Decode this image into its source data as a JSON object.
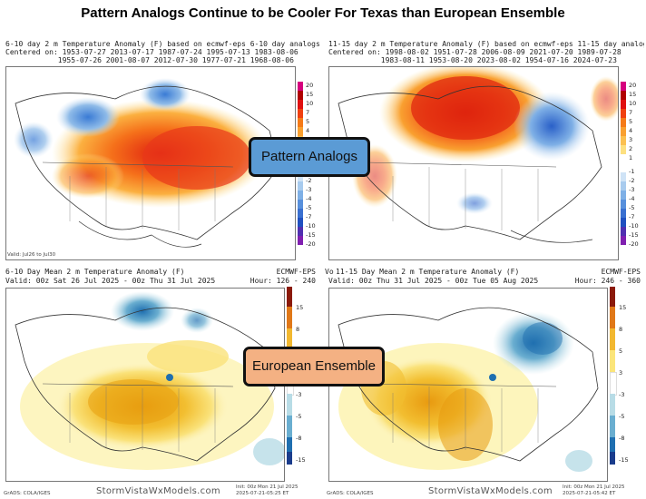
{
  "title": "Pattern Analogs Continue to be Cooler For Texas than European Ensemble",
  "callouts": {
    "analogs": "Pattern Analogs",
    "ensemble": "European Ensemble"
  },
  "colors": {
    "analogs_callout_bg": "#5b9bd5",
    "ensemble_callout_bg": "#f4b183"
  },
  "panels": {
    "tl": {
      "header_line1": "6-10 day 2 m Temperature Anomaly (F) based on ecmwf-eps 6-10 day analogs",
      "header_line2": "Centered on: 1953-07-27 2013-07-17 1987-07-24 1995-07-13 1983-08-06",
      "header_line3": "            1955-07-26 2001-08-07 2012-07-30 1977-07-21 1968-08-06",
      "valid": "Valid: Jul26 to Jul30",
      "ticks": [
        "20",
        "15",
        "10",
        "7",
        "5",
        "4",
        "3",
        "2",
        "1",
        "-1",
        "-2",
        "-3",
        "-4",
        "-5",
        "-7",
        "-10",
        "-15",
        "-20"
      ]
    },
    "tr": {
      "header_line1": "11-15 day 2 m Temperature Anomaly (F) based on ecmwf-eps 11-15 day analogs",
      "header_line2": "Centered on: 1998-08-02 1951-07-28 2006-08-09 2021-07-20 1989-07-28",
      "header_line3": "            1983-08-11 1953-08-20 2023-08-02 1954-07-16 2024-07-23",
      "ticks": [
        "20",
        "15",
        "10",
        "7",
        "5",
        "4",
        "3",
        "2",
        "1",
        "-1",
        "-2",
        "-3",
        "-4",
        "-5",
        "-7",
        "-10",
        "-15",
        "-20"
      ]
    },
    "bl": {
      "header_line1": "6-10 Day Mean 2 m Temperature Anomaly (F)",
      "header_line2": "Valid: 00z Sat 26 Jul 2025 - 00z Thu 31 Jul 2025",
      "model": "ECMWF-EPS",
      "hour": "Hour: 126 - 240",
      "init": "Init: 00z Mon 21 Jul 2025",
      "stamp": "2025-07-21-05:25 ET",
      "grads": "GrADS: COLA/IGES",
      "brand": "StormVistaWxModels.com",
      "ticks": [
        "15",
        "8",
        "5",
        "3",
        "-3",
        "-5",
        "-8",
        "-15"
      ]
    },
    "br": {
      "prefix": "Vo",
      "header_line1": "11-15 Day Mean 2 m Temperature Anomaly (F)",
      "header_line2": "Valid: 00z Thu 31 Jul 2025 - 00z Tue 05 Aug 2025",
      "model": "ECMWF-EPS",
      "hour": "Hour: 246 - 360",
      "init": "Init: 00z Mon 21 Jul 2025",
      "stamp": "2025-07-21-05:42 ET",
      "grads": "GrADS: COLA/IGES",
      "brand": "StormVistaWxModels.com",
      "ticks": [
        "15",
        "8",
        "5",
        "3",
        "-3",
        "-5",
        "-8",
        "-15"
      ]
    }
  }
}
